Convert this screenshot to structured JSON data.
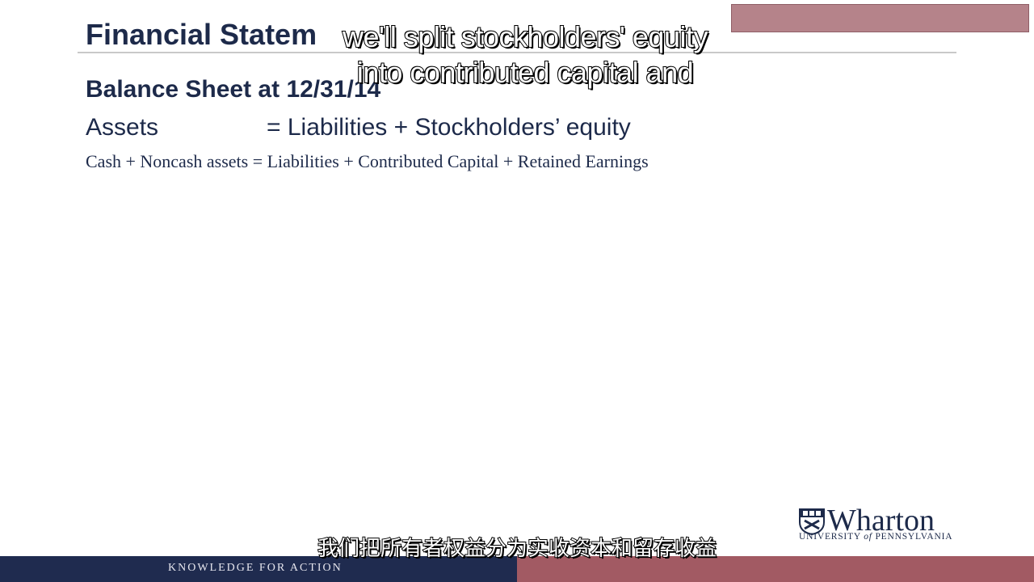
{
  "slide": {
    "title": "Financial Statem",
    "subtitle": "Balance Sheet at 12/31/14",
    "equation": {
      "left": "Assets",
      "right": "=  Liabilities + Stockholders’ equity"
    },
    "detail_equation": "Cash + Noncash assets = Liabilities + Contributed Capital + Retained Earnings"
  },
  "captions": {
    "english_line1": "we'll split stockholders' equity",
    "english_line2": "into contributed capital and",
    "chinese": "我们把所有者权益分为实收资本和留存收益"
  },
  "logo": {
    "name": "Wharton",
    "sub_pre": "UNIVERSITY ",
    "sub_of": "of",
    "sub_post": " PENNSYLVANIA"
  },
  "footer": {
    "tagline": "KNOWLEDGE FOR ACTION"
  },
  "colors": {
    "navy": "#1f2b4f",
    "text_navy": "#1d2a4a",
    "maroon_bar": "#a25a63",
    "top_box": "#b5838a"
  }
}
